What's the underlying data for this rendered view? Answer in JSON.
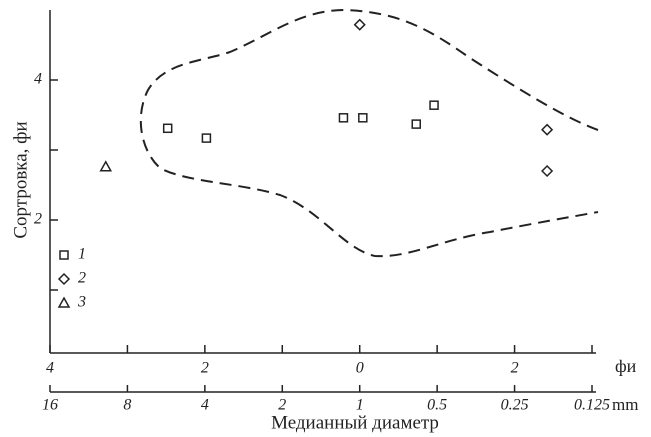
{
  "chart_data": {
    "type": "scatter",
    "ylabel": "Сортровка, фи",
    "xlabel": "Медианный диаметр",
    "xunit": "фи",
    "x2unit": "mm",
    "xlim": [
      -4,
      3
    ],
    "xticks": [
      {
        "value": -4,
        "label": "4"
      },
      {
        "value": -2,
        "label": "2"
      },
      0,
      2
    ],
    "xminorticks": [
      -3,
      -1,
      1,
      3
    ],
    "x2lim": [
      16,
      0.125
    ],
    "x2scale": "log",
    "x2ticks": [
      16,
      8,
      4,
      2,
      1,
      0.5,
      0.25,
      0.125
    ],
    "ylim": [
      0.1,
      5.0
    ],
    "yticks": [
      2,
      4
    ],
    "yminorticks": [
      1,
      3
    ],
    "legend": "lower left",
    "series": [
      {
        "name": "1",
        "marker": "square",
        "color": "#222",
        "x": [
          -2.48,
          -1.98,
          -0.21,
          0.04,
          0.73,
          0.96
        ],
        "values": [
          3.31,
          3.17,
          3.46,
          3.46,
          3.37,
          3.64
        ]
      },
      {
        "name": "2",
        "marker": "diamond",
        "color": "#222",
        "x": [
          0.0,
          2.42,
          2.42
        ],
        "values": [
          4.79,
          3.29,
          2.7
        ]
      },
      {
        "name": "3",
        "marker": "triangle",
        "color": "#222",
        "x": [
          -3.28
        ],
        "values": [
          2.76
        ]
      }
    ]
  }
}
